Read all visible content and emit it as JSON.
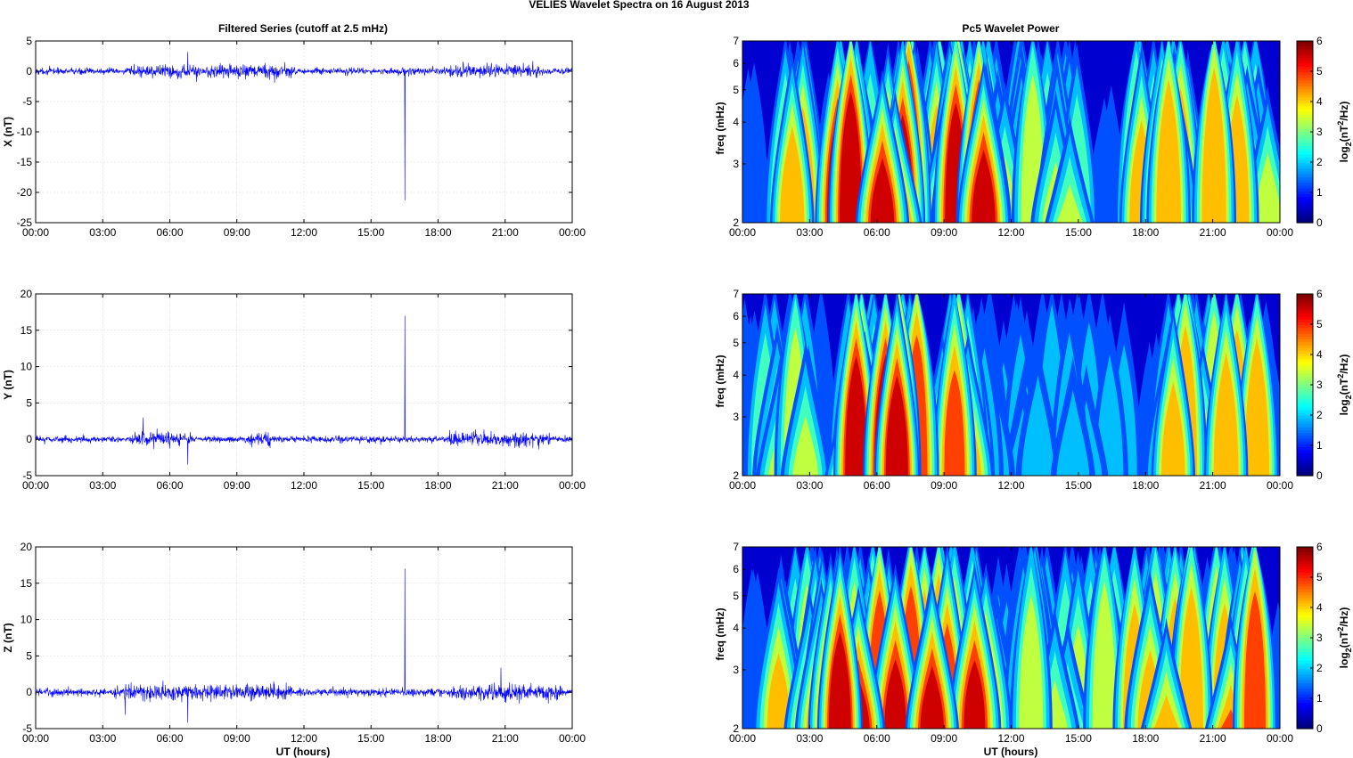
{
  "suptitle": "VELIES Wavelet Spectra on 16 August    2013",
  "left_column_title": "Filtered Series (cutoff at 2.5 mHz)",
  "right_column_title": "Pc5 Wavelet Power",
  "shared_xlabel": "UT (hours)",
  "colors": {
    "signal": "#0000ff",
    "axis": "#000000",
    "background": "#ffffff"
  },
  "chart_data": [
    {
      "id": "series-x",
      "type": "line",
      "ylabel": "X (nT)",
      "xlim": [
        "00:00",
        "24:00"
      ],
      "ylim": [
        -25,
        5
      ],
      "xticks": [
        "00:00",
        "03:00",
        "06:00",
        "09:00",
        "12:00",
        "15:00",
        "18:00",
        "21:00",
        "00:00"
      ],
      "yticks": [
        "5",
        "0",
        "-5",
        "-10",
        "-15",
        "-20",
        "-25"
      ],
      "ytick_values": [
        5,
        0,
        -5,
        -10,
        -15,
        -20,
        -25
      ],
      "noise_amplitude_nT": 0.6,
      "activity_windows_hours": [
        [
          4.2,
          11.5
        ],
        [
          18.5,
          22.5
        ]
      ],
      "spikes": [
        {
          "t_hours": 16.5,
          "value": -21.3
        },
        {
          "t_hours": 6.8,
          "value": 3.2
        }
      ]
    },
    {
      "id": "series-y",
      "type": "line",
      "ylabel": "Y (nT)",
      "xlim": [
        "00:00",
        "24:00"
      ],
      "ylim": [
        -5,
        20
      ],
      "xticks": [
        "00:00",
        "03:00",
        "06:00",
        "09:00",
        "12:00",
        "15:00",
        "18:00",
        "21:00",
        "00:00"
      ],
      "yticks": [
        "20",
        "15",
        "10",
        "5",
        "0",
        "-5"
      ],
      "ytick_values": [
        20,
        15,
        10,
        5,
        0,
        -5
      ],
      "noise_amplitude_nT": 0.5,
      "activity_windows_hours": [
        [
          4.3,
          7.0
        ],
        [
          9.5,
          10.5
        ],
        [
          18.5,
          23.0
        ]
      ],
      "spikes": [
        {
          "t_hours": 16.5,
          "value": 17.0
        },
        {
          "t_hours": 4.8,
          "value": 3.0
        },
        {
          "t_hours": 6.8,
          "value": -3.5
        }
      ]
    },
    {
      "id": "series-z",
      "type": "line",
      "ylabel": "Z (nT)",
      "xlabel": "UT (hours)",
      "xlim": [
        "00:00",
        "24:00"
      ],
      "ylim": [
        -5,
        20
      ],
      "xticks": [
        "00:00",
        "03:00",
        "06:00",
        "09:00",
        "12:00",
        "15:00",
        "18:00",
        "21:00",
        "00:00"
      ],
      "yticks": [
        "20",
        "15",
        "10",
        "5",
        "0",
        "-5"
      ],
      "ytick_values": [
        20,
        15,
        10,
        5,
        0,
        -5
      ],
      "noise_amplitude_nT": 0.6,
      "activity_windows_hours": [
        [
          3.5,
          11.5
        ],
        [
          18.5,
          23.5
        ]
      ],
      "spikes": [
        {
          "t_hours": 16.5,
          "value": 17.0
        },
        {
          "t_hours": 6.8,
          "value": -4.2
        },
        {
          "t_hours": 20.8,
          "value": 3.4
        },
        {
          "t_hours": 4.0,
          "value": -3.1
        }
      ]
    },
    {
      "id": "wavelet-x",
      "type": "heatmap",
      "ylabel": "freq (mHz)",
      "xlim": [
        "00:00",
        "24:00"
      ],
      "ylim_mHz": [
        2,
        7
      ],
      "y_scale": "log",
      "xticks": [
        "00:00",
        "03:00",
        "06:00",
        "09:00",
        "12:00",
        "15:00",
        "18:00",
        "21:00",
        "00:00"
      ],
      "yticks": [
        "7",
        "6",
        "5",
        "4",
        "3",
        "2"
      ],
      "ytick_values": [
        7,
        6,
        5,
        4,
        3,
        2
      ],
      "colorbar": {
        "label_base": "log",
        "label_sub": "2",
        "label_unit_a": "(nT",
        "label_sup": "2",
        "label_unit_b": "/Hz)",
        "ticks": [
          "6",
          "5",
          "4",
          "3",
          "2",
          "1",
          "0"
        ],
        "range": [
          0,
          6
        ],
        "colormap": "jet"
      },
      "power_envelope_hours": [
        [
          1.5,
          3.0,
          4.5
        ],
        [
          4.0,
          11.0,
          6.0
        ],
        [
          11.0,
          15.0,
          3.5
        ],
        [
          17.5,
          20.0,
          4.5
        ],
        [
          21.0,
          23.5,
          4.5
        ]
      ]
    },
    {
      "id": "wavelet-y",
      "type": "heatmap",
      "ylabel": "freq (mHz)",
      "xlim": [
        "00:00",
        "24:00"
      ],
      "ylim_mHz": [
        2,
        7
      ],
      "y_scale": "log",
      "xticks": [
        "00:00",
        "03:00",
        "06:00",
        "09:00",
        "12:00",
        "15:00",
        "18:00",
        "21:00",
        "00:00"
      ],
      "yticks": [
        "7",
        "6",
        "5",
        "4",
        "3",
        "2"
      ],
      "ytick_values": [
        7,
        6,
        5,
        4,
        3,
        2
      ],
      "colorbar": {
        "label_base": "log",
        "label_sub": "2",
        "label_unit_a": "(nT",
        "label_sup": "2",
        "label_unit_b": "/Hz)",
        "ticks": [
          "6",
          "5",
          "4",
          "3",
          "2",
          "1",
          "0"
        ],
        "range": [
          0,
          6
        ],
        "colormap": "jet"
      },
      "power_envelope_hours": [
        [
          1.0,
          3.0,
          3.5
        ],
        [
          4.0,
          7.0,
          6.0
        ],
        [
          7.0,
          10.5,
          5.0
        ],
        [
          10.5,
          17.5,
          2.0
        ],
        [
          18.5,
          23.0,
          4.5
        ]
      ]
    },
    {
      "id": "wavelet-z",
      "type": "heatmap",
      "ylabel": "freq (mHz)",
      "xlabel": "UT (hours)",
      "xlim": [
        "00:00",
        "24:00"
      ],
      "ylim_mHz": [
        2,
        7
      ],
      "y_scale": "log",
      "xticks": [
        "00:00",
        "03:00",
        "06:00",
        "09:00",
        "12:00",
        "15:00",
        "18:00",
        "21:00",
        "00:00"
      ],
      "yticks": [
        "7",
        "6",
        "5",
        "4",
        "3",
        "2"
      ],
      "ytick_values": [
        7,
        6,
        5,
        4,
        3,
        2
      ],
      "colorbar": {
        "label_base": "log",
        "label_sub": "2",
        "label_unit_a": "(nT",
        "label_sup": "2",
        "label_unit_b": "/Hz)",
        "ticks": [
          "6",
          "5",
          "4",
          "3",
          "2",
          "1",
          "0"
        ],
        "range": [
          0,
          6
        ],
        "colormap": "jet"
      },
      "power_envelope_hours": [
        [
          1.5,
          3.5,
          4.5
        ],
        [
          3.5,
          11.0,
          6.0
        ],
        [
          11.0,
          17.0,
          3.5
        ],
        [
          17.5,
          20.5,
          4.5
        ],
        [
          21.0,
          23.5,
          4.8
        ]
      ]
    }
  ]
}
